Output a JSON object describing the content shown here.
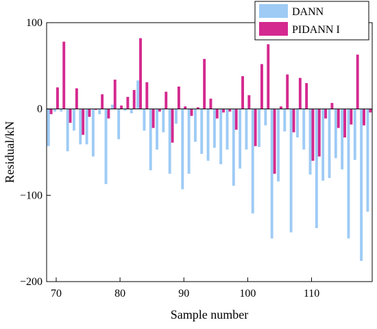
{
  "chart_data": {
    "type": "bar",
    "xlabel": "Sample number",
    "ylabel": "Residual/kN",
    "xlim": [
      68.5,
      119.5
    ],
    "ylim": [
      -200,
      100
    ],
    "xticks": [
      70,
      80,
      90,
      100,
      110
    ],
    "yticks": [
      -200,
      -100,
      0,
      100
    ],
    "xtick_labels": [
      "70",
      "80",
      "90",
      "100",
      "110"
    ],
    "ytick_labels": [
      "−200",
      "−100",
      "0",
      "100"
    ],
    "grid": false,
    "legend_position": "top-right",
    "x": [
      69,
      70,
      71,
      72,
      73,
      74,
      75,
      76,
      77,
      78,
      79,
      80,
      81,
      82,
      83,
      84,
      85,
      86,
      87,
      88,
      89,
      90,
      91,
      92,
      93,
      94,
      95,
      96,
      97,
      98,
      99,
      100,
      101,
      102,
      103,
      104,
      105,
      106,
      107,
      108,
      109,
      110,
      111,
      112,
      113,
      114,
      115,
      116,
      117,
      118,
      119
    ],
    "series": [
      {
        "name": "DANN",
        "color": "#9ecbf5",
        "values": [
          -43,
          -3,
          -3,
          -49,
          -25,
          -41,
          -41,
          -55,
          -6,
          -87,
          5,
          -35,
          -2,
          -5,
          33,
          -25,
          -71,
          -47,
          -27,
          -75,
          -17,
          -93,
          -75,
          -38,
          -52,
          -60,
          -45,
          -64,
          -47,
          -89,
          -69,
          -47,
          -121,
          -44,
          -19,
          -150,
          -84,
          -26,
          -143,
          -33,
          -47,
          -76,
          -138,
          -83,
          -80,
          -57,
          -70,
          -150,
          -59,
          -176,
          -119
        ]
      },
      {
        "name": "PIDANN I",
        "color": "#d4298f",
        "values": [
          -6,
          25,
          78,
          -16,
          24,
          -30,
          -9,
          -1,
          17,
          -11,
          34,
          4,
          14,
          22,
          82,
          31,
          -22,
          -3,
          20,
          -39,
          26,
          3,
          -8,
          2,
          58,
          12,
          -11,
          -4,
          -3,
          -24,
          38,
          16,
          -43,
          52,
          75,
          -75,
          3,
          40,
          -27,
          36,
          30,
          -60,
          -55,
          -11,
          7,
          -22,
          -33,
          -18,
          63,
          -19,
          -4
        ]
      }
    ]
  }
}
